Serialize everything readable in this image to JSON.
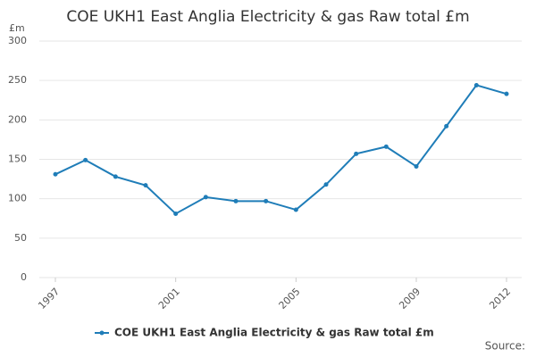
{
  "chart_data": {
    "type": "line",
    "title": "COE UKH1 East Anglia Electricity & gas Raw total £m",
    "y_label": "£m",
    "x": [
      1997,
      1998,
      1999,
      2000,
      2001,
      2002,
      2003,
      2004,
      2005,
      2006,
      2007,
      2008,
      2009,
      2010,
      2011,
      2012
    ],
    "series": [
      {
        "name": "COE UKH1 East Anglia Electricity & gas Raw total £m",
        "color": "#1f7db8",
        "values": [
          131,
          149,
          128,
          117,
          81,
          102,
          97,
          97,
          86,
          118,
          157,
          166,
          141,
          192,
          244,
          233
        ]
      }
    ],
    "xlim": [
      1997,
      2012
    ],
    "xticks": [
      1997,
      2001,
      2005,
      2009,
      2012
    ],
    "ylim": [
      0,
      300
    ],
    "yticks": [
      0,
      50,
      100,
      150,
      200,
      250,
      300
    ],
    "grid": true,
    "legend": "bottom",
    "source": "Source:"
  }
}
